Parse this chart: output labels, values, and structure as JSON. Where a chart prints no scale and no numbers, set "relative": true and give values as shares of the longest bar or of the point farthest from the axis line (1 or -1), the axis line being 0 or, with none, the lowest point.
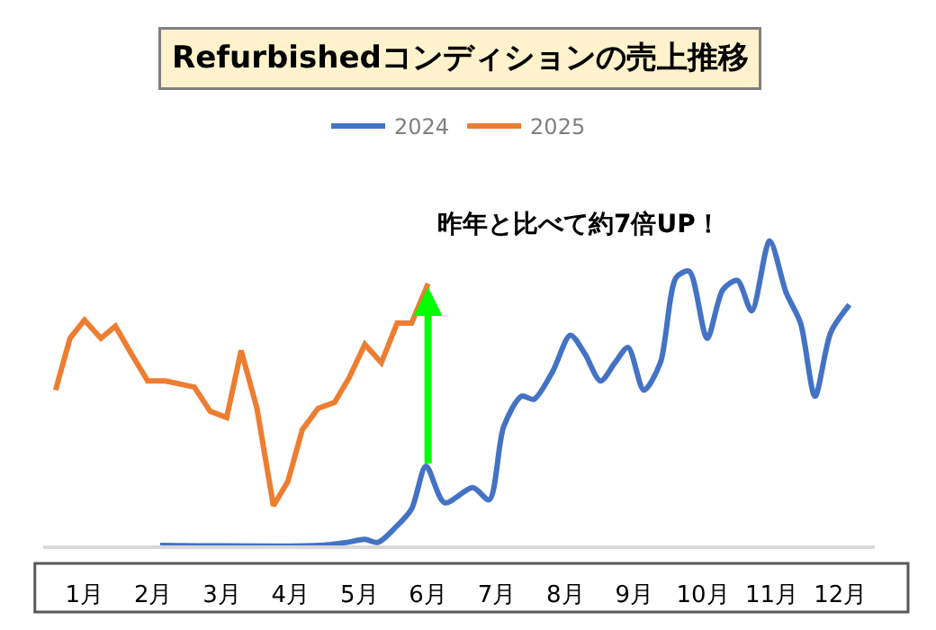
{
  "chart_data": {
    "type": "line",
    "title": "Refurbishedコンディションの売上推移",
    "relative": true,
    "legend": "top",
    "xlim": [
      0.4,
      12.5
    ],
    "xticks": [
      {
        "value": 1,
        "label": "1月"
      },
      {
        "value": 2,
        "label": "2月"
      },
      {
        "value": 3,
        "label": "3月"
      },
      {
        "value": 4,
        "label": "4月"
      },
      {
        "value": 5,
        "label": "5月"
      },
      {
        "value": 6,
        "label": "6月"
      },
      {
        "value": 7,
        "label": "7月"
      },
      {
        "value": 8,
        "label": "8月"
      },
      {
        "value": 9,
        "label": "9月"
      },
      {
        "value": 10,
        "label": "10月"
      },
      {
        "value": 11,
        "label": "11月"
      },
      {
        "value": 12,
        "label": "12月"
      }
    ],
    "annotations": [
      "昨年と比べて約7倍UP！"
    ],
    "series": [
      {
        "name": "2024",
        "color": "#4472c4",
        "x": [
          2.1,
          4.4,
          4.82,
          5.08,
          5.27,
          5.53,
          5.76,
          5.97,
          6.24,
          6.65,
          6.89,
          7.1,
          7.36,
          7.54,
          7.81,
          8.07,
          8.28,
          8.51,
          8.72,
          8.91,
          9.14,
          9.38,
          9.61,
          9.8,
          10.06,
          10.29,
          10.5,
          10.71,
          10.97,
          11.21,
          11.42,
          11.63,
          11.86,
          12.13
        ],
        "values": [
          0,
          0,
          0.01,
          0.02,
          0.01,
          0.06,
          0.12,
          0.26,
          0.14,
          0.19,
          0.15,
          0.39,
          0.49,
          0.48,
          0.57,
          0.69,
          0.63,
          0.54,
          0.6,
          0.65,
          0.51,
          0.6,
          0.88,
          0.9,
          0.68,
          0.84,
          0.87,
          0.77,
          1.0,
          0.83,
          0.73,
          0.49,
          0.7,
          0.79
        ]
      },
      {
        "name": "2025",
        "color": "#ed7d31",
        "x": [
          0.58,
          0.79,
          1.0,
          1.24,
          1.45,
          1.68,
          1.92,
          2.18,
          2.6,
          2.83,
          3.07,
          3.28,
          3.51,
          3.75,
          3.96,
          4.17,
          4.4,
          4.64,
          4.85,
          5.08,
          5.32,
          5.55,
          5.76,
          6.0
        ],
        "values": [
          0.51,
          0.68,
          0.74,
          0.68,
          0.72,
          0.63,
          0.54,
          0.54,
          0.52,
          0.44,
          0.42,
          0.64,
          0.45,
          0.13,
          0.21,
          0.38,
          0.45,
          0.47,
          0.55,
          0.66,
          0.6,
          0.73,
          0.73,
          0.86
        ]
      }
    ]
  }
}
